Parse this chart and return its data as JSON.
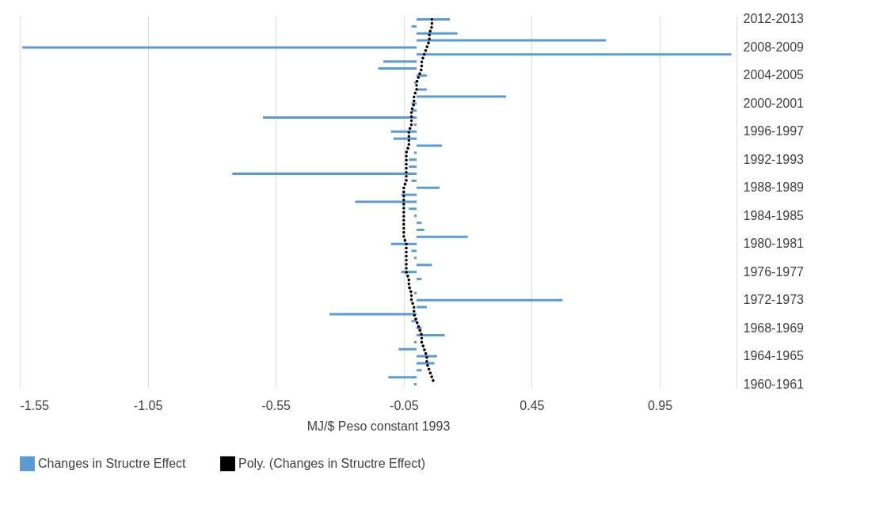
{
  "chart_data": {
    "type": "bar",
    "orientation": "horizontal",
    "xlabel": "MJ/$ Peso constant 1993",
    "categories": [
      "2012-2013",
      null,
      null,
      null,
      "2008-2009",
      null,
      null,
      null,
      "2004-2005",
      null,
      null,
      null,
      "2000-2001",
      null,
      null,
      null,
      "1996-1997",
      null,
      null,
      null,
      "1992-1993",
      null,
      null,
      null,
      "1988-1989",
      null,
      null,
      null,
      "1984-1985",
      null,
      null,
      null,
      "1980-1981",
      null,
      null,
      null,
      "1976-1977",
      null,
      null,
      null,
      "1972-1973",
      null,
      null,
      null,
      "1968-1969",
      null,
      null,
      null,
      "1964-1965",
      null,
      null,
      null,
      "1960-1961"
    ],
    "series": [
      {
        "name": "Changes in Structre Effect",
        "color": "#5b9bd5",
        "values": [
          0.13,
          -0.02,
          0.16,
          0.74,
          -1.54,
          1.23,
          -0.13,
          -0.15,
          0.04,
          -0.01,
          0.04,
          0.35,
          -0.02,
          -0.02,
          -0.6,
          -0.01,
          -0.1,
          -0.09,
          0.1,
          -0.01,
          -0.03,
          -0.03,
          -0.72,
          -0.02,
          0.09,
          -0.06,
          -0.24,
          -0.03,
          -0.01,
          0.02,
          0.03,
          0.2,
          -0.1,
          -0.02,
          -0.01,
          0.06,
          -0.06,
          0.02,
          0,
          -0.01,
          0.57,
          0.04,
          -0.34,
          -0.02,
          0.02,
          0.11,
          -0.01,
          -0.07,
          0.08,
          0.07,
          0.02,
          -0.11,
          -0.01
        ]
      },
      {
        "name": "Poly. (Changes in Structre Effect)",
        "type": "line",
        "color": "#000000",
        "line_style": "dotted",
        "marker": "none",
        "values": [
          0.06,
          0.06,
          0.05,
          0.05,
          0.04,
          0.03,
          0.02,
          0.02,
          0.01,
          0,
          0,
          -0.01,
          -0.01,
          -0.02,
          -0.02,
          -0.02,
          -0.03,
          -0.03,
          -0.03,
          -0.04,
          -0.04,
          -0.04,
          -0.04,
          -0.04,
          -0.05,
          -0.05,
          -0.05,
          -0.05,
          -0.05,
          -0.05,
          -0.05,
          -0.05,
          -0.04,
          -0.04,
          -0.04,
          -0.04,
          -0.04,
          -0.03,
          -0.03,
          -0.02,
          -0.02,
          -0.01,
          -0.01,
          0,
          0.01,
          0.02,
          0.02,
          0.03,
          0.04,
          0.04,
          0.05,
          0.06,
          0.07
        ]
      }
    ],
    "xlim": [
      -1.55,
      1.25
    ],
    "xticks": [
      -1.55,
      -1.05,
      -0.55,
      -0.05,
      0.45,
      0.95
    ],
    "grid": "x",
    "legend": "bottom"
  }
}
